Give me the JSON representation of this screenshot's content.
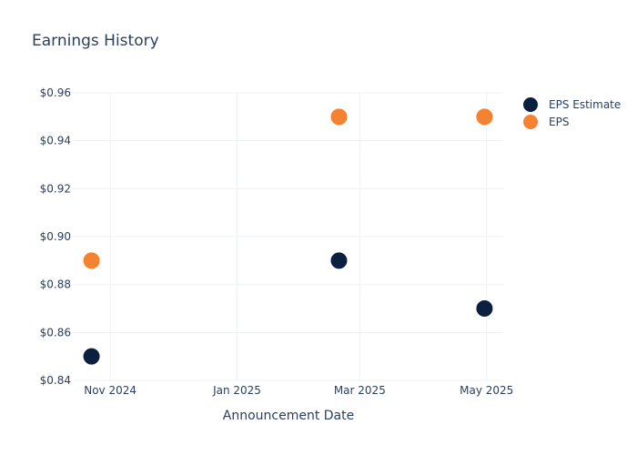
{
  "chart_data": {
    "type": "scatter",
    "title": "Earnings History",
    "xlabel": "Announcement Date",
    "ylabel": "",
    "x_ticks": [
      "Nov 2024",
      "Jan 2025",
      "Mar 2025",
      "May 2025"
    ],
    "x_tick_dates": [
      "2024-11-01",
      "2025-01-01",
      "2025-03-01",
      "2025-05-01"
    ],
    "x_range": [
      "2024-10-14",
      "2025-05-09"
    ],
    "ylim": [
      0.84,
      0.96
    ],
    "y_ticks": [
      {
        "value": 0.84,
        "label": "$0.84"
      },
      {
        "value": 0.86,
        "label": "$0.86"
      },
      {
        "value": 0.88,
        "label": "$0.88"
      },
      {
        "value": 0.9,
        "label": "$0.90"
      },
      {
        "value": 0.92,
        "label": "$0.92"
      },
      {
        "value": 0.94,
        "label": "$0.94"
      },
      {
        "value": 0.96,
        "label": "$0.96"
      }
    ],
    "grid": true,
    "legend_position": "top-right",
    "series": [
      {
        "name": "EPS Estimate",
        "color": "#0b1f3f",
        "points": [
          {
            "x": "2024-10-23",
            "y": 0.85
          },
          {
            "x": "2025-02-19",
            "y": 0.89
          },
          {
            "x": "2025-04-30",
            "y": 0.87
          }
        ]
      },
      {
        "name": "EPS",
        "color": "#f58231",
        "points": [
          {
            "x": "2024-10-23",
            "y": 0.89
          },
          {
            "x": "2025-02-19",
            "y": 0.95
          },
          {
            "x": "2025-04-30",
            "y": 0.95
          }
        ]
      }
    ]
  }
}
